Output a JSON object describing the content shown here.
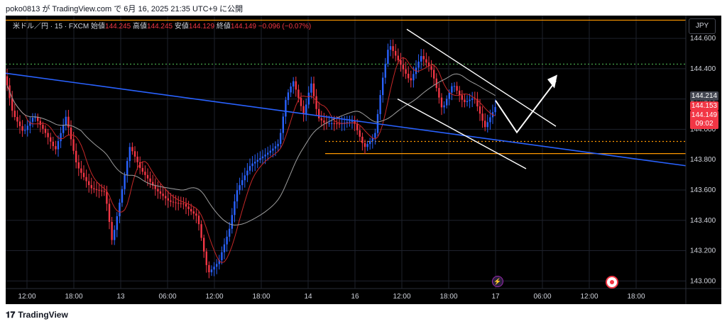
{
  "header": {
    "title": "poko0813 が TradingView.com で 6月 16, 2025 21:35 UTC+9 に公開"
  },
  "legend": {
    "symbol": "米ドル／円 · 15 · FXCM",
    "open_label": "始値",
    "open": "144.245",
    "high_label": "高値",
    "high": "144.245",
    "low_label": "安値",
    "low": "144.129",
    "close_label": "終値",
    "close": "144.149",
    "change": "−0.096 (−0.07%)"
  },
  "currency_button": "JPY",
  "price_tags": {
    "gray": "144.214",
    "red_top": "144.153",
    "red_mid": "144.149",
    "red_time": "09:02"
  },
  "chart_data": {
    "type": "candlestick",
    "ylim": [
      142.95,
      144.75
    ],
    "y_ticks": [
      "144.600",
      "144.400",
      "144.200",
      "144.000",
      "143.800",
      "143.600",
      "143.400",
      "143.200",
      "143.000"
    ],
    "x_ticks": [
      "12:00",
      "18:00",
      "13",
      "06:00",
      "12:00",
      "18:00",
      "14",
      "16",
      "12:00",
      "18:00",
      "17",
      "06:00",
      "12:00",
      "18:00"
    ],
    "levels": [
      {
        "price": 144.72,
        "style": "solid",
        "color": "#ff9800"
      },
      {
        "price": 144.43,
        "style": "dotted",
        "color": "#4caf50"
      },
      {
        "price": 143.92,
        "style": "dotted",
        "color": "#ff9800"
      },
      {
        "price": 143.84,
        "style": "solid",
        "color": "#ff9800"
      }
    ],
    "colors": {
      "up": "#2962ff",
      "down": "#f23645",
      "ma_fast": "#c62828",
      "ma_slow": "#9e9e9e",
      "trendline": "#2962ff",
      "channel": "#ffffff"
    }
  },
  "footer": {
    "brand": "TradingView"
  }
}
